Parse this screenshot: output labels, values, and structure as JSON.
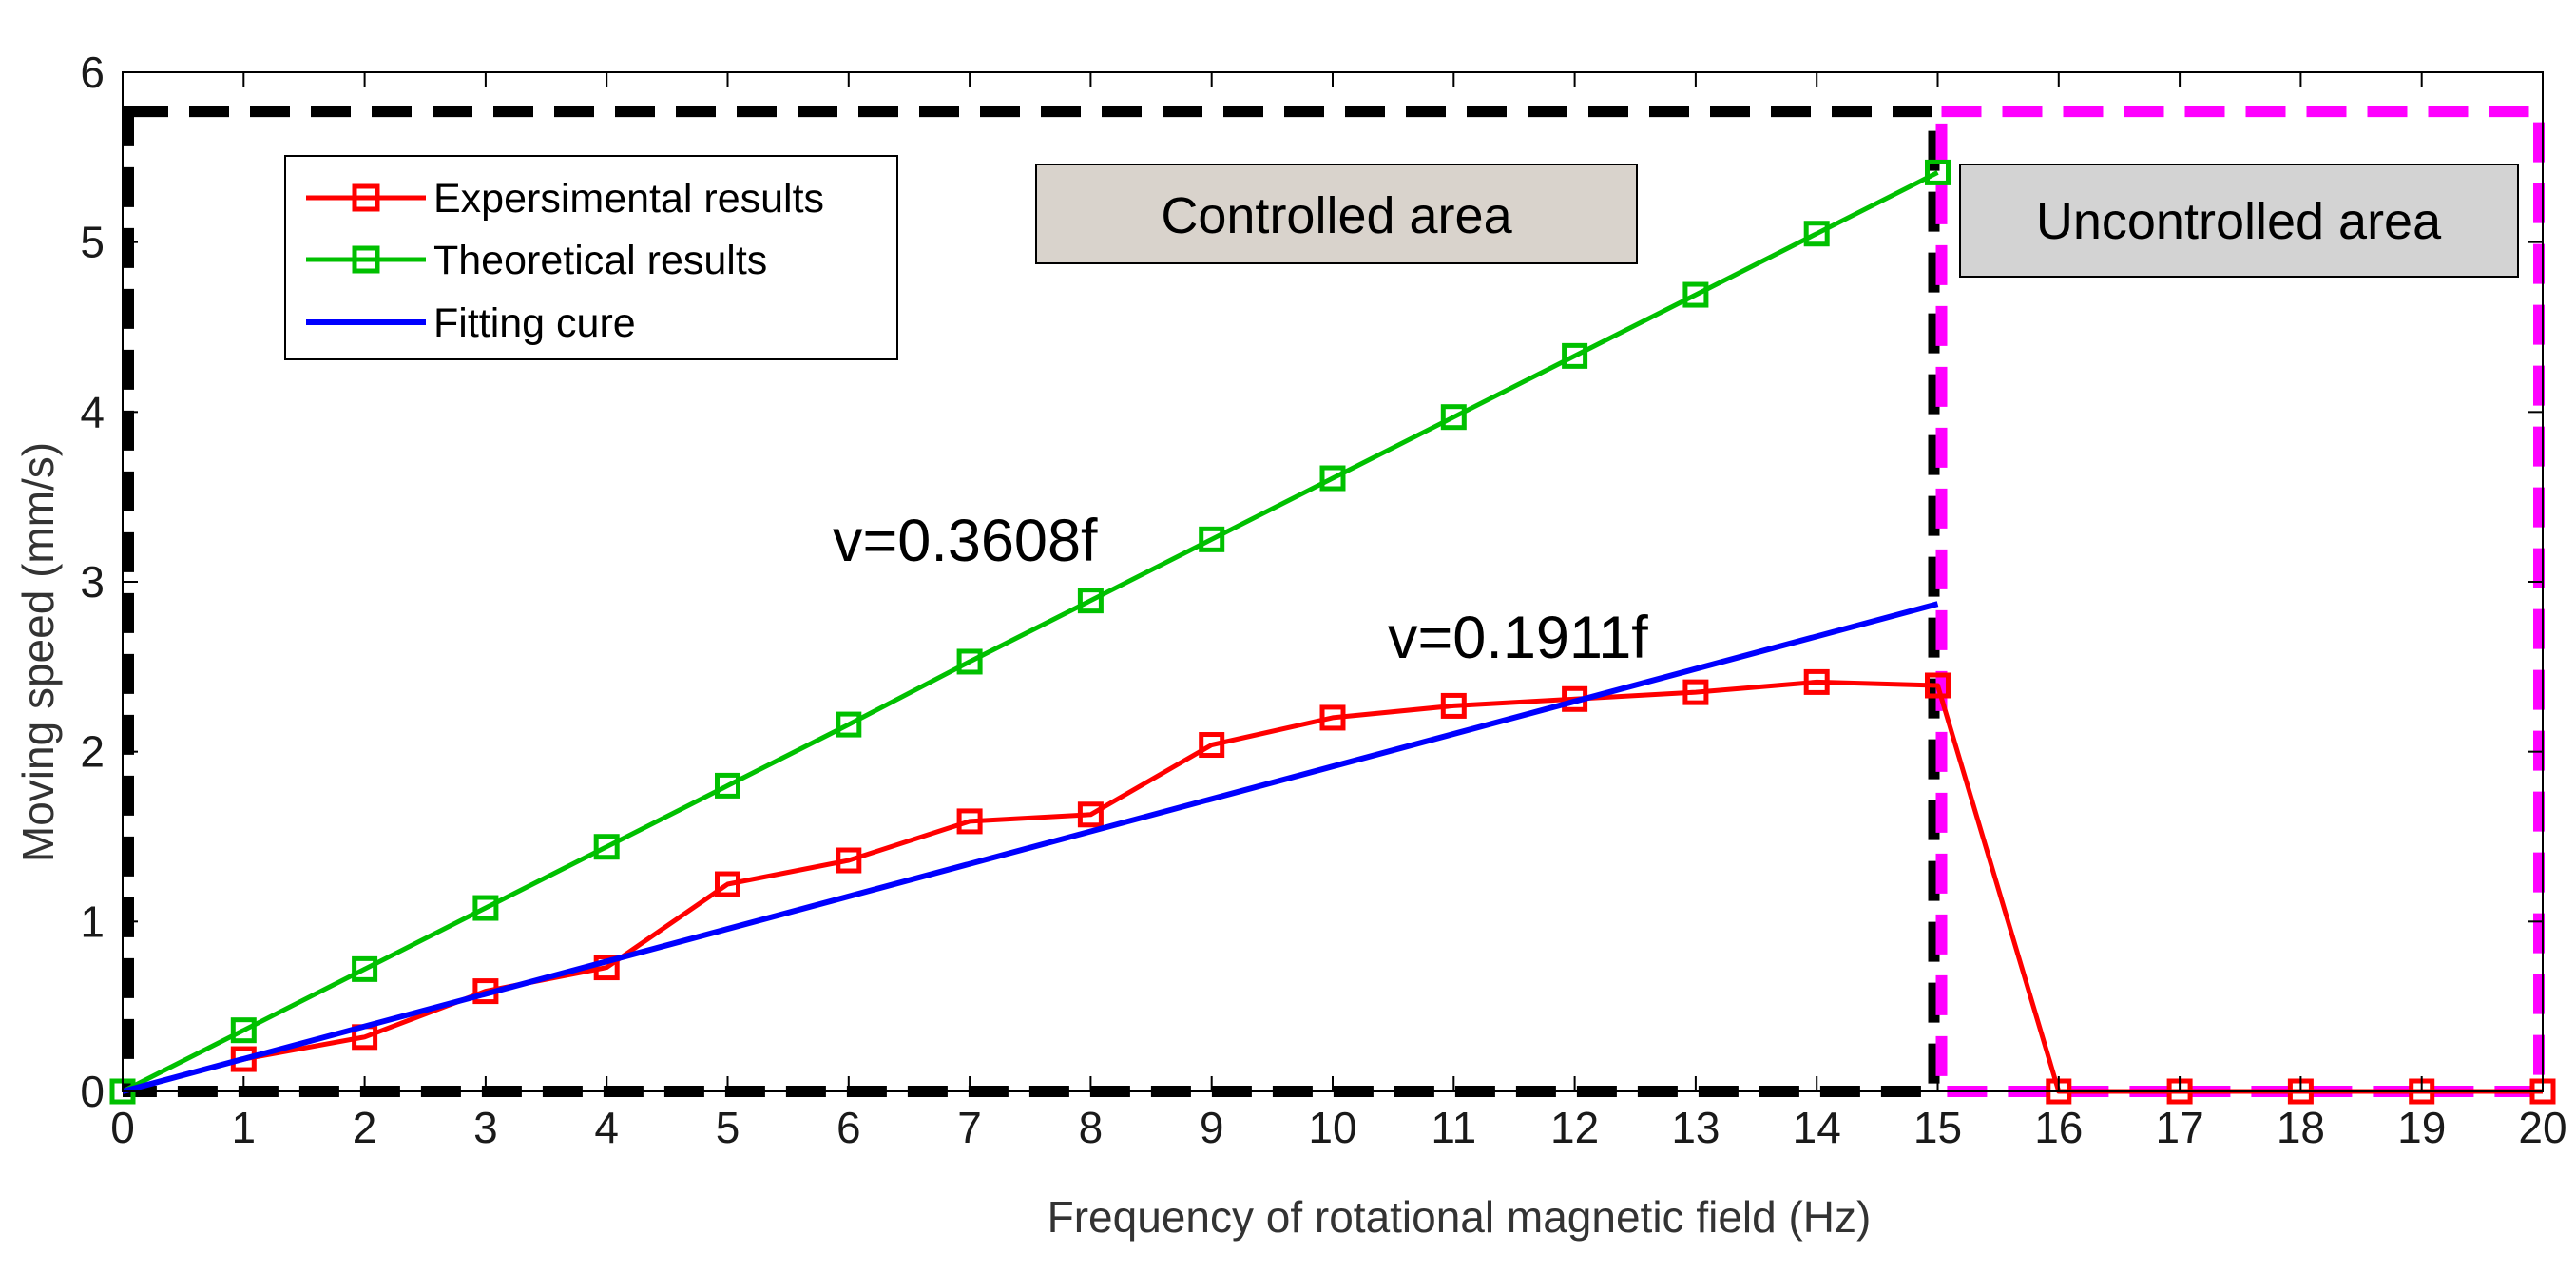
{
  "chart_data": {
    "type": "line",
    "title": "",
    "xlabel": "Frequency of rotational magnetic field (Hz)",
    "ylabel": "Moving speed (mm/s)",
    "xlim": [
      0,
      20
    ],
    "ylim": [
      0,
      6
    ],
    "x_ticks": [
      0,
      1,
      2,
      3,
      4,
      5,
      6,
      7,
      8,
      9,
      10,
      11,
      12,
      13,
      14,
      15,
      16,
      17,
      18,
      19,
      20
    ],
    "y_ticks": [
      0,
      1,
      2,
      3,
      4,
      5,
      6
    ],
    "grid": false,
    "legend_position": "top-left",
    "series": [
      {
        "name": "Expersimental results",
        "color": "#ff0000",
        "marker": "square",
        "x": [
          0,
          1,
          2,
          3,
          4,
          5,
          6,
          7,
          8,
          9,
          10,
          11,
          12,
          13,
          14,
          15,
          16,
          17,
          18,
          19,
          20
        ],
        "values": [
          0,
          0.19,
          0.32,
          0.59,
          0.73,
          1.22,
          1.36,
          1.59,
          1.63,
          2.04,
          2.2,
          2.27,
          2.31,
          2.35,
          2.41,
          2.39,
          0,
          0,
          0,
          0,
          0
        ]
      },
      {
        "name": "Theoretical results",
        "color": "#00c000",
        "marker": "square",
        "x": [
          0,
          1,
          2,
          3,
          4,
          5,
          6,
          7,
          8,
          9,
          10,
          11,
          12,
          13,
          14,
          15
        ],
        "values": [
          0,
          0.36,
          0.72,
          1.08,
          1.44,
          1.8,
          2.16,
          2.53,
          2.89,
          3.25,
          3.61,
          3.97,
          4.33,
          4.69,
          5.05,
          5.41
        ]
      },
      {
        "name": "Fitting cure",
        "color": "#0000ff",
        "marker": "none",
        "x": [
          0,
          15
        ],
        "values": [
          0,
          2.87
        ]
      }
    ],
    "regions": [
      {
        "label": "Controlled area",
        "x_range": [
          0,
          15
        ],
        "y_top": 5.77,
        "border_color": "#000000",
        "label_bg": "#d9d3cc"
      },
      {
        "label": "Uncontrolled area",
        "x_range": [
          15,
          20
        ],
        "y_top": 5.77,
        "border_color": "#ff00ff",
        "label_bg": "#d3d3d3"
      }
    ],
    "annotations": [
      {
        "text": "v=0.3608f",
        "x": 7.4,
        "y": 3.2
      },
      {
        "text": "v=0.1911f",
        "x": 11.2,
        "y": 2.58
      }
    ]
  }
}
